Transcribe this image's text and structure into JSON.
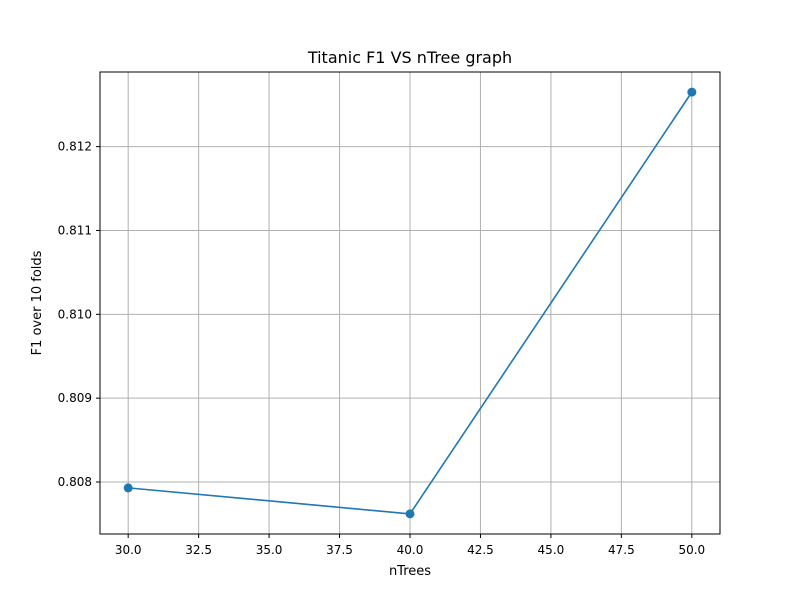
{
  "chart_data": {
    "type": "line",
    "title": "Titanic F1 VS nTree graph",
    "xlabel": "nTrees",
    "ylabel": "F1 over 10 folds",
    "x": [
      30,
      40,
      50
    ],
    "series": [
      {
        "values": [
          0.80793,
          0.80762,
          0.81265
        ],
        "color": "#1f77b4",
        "marker": "circle"
      }
    ],
    "xlim": [
      29.0,
      51.0
    ],
    "ylim": [
      0.80738,
      0.81289
    ],
    "xticks": [
      30.0,
      32.5,
      35.0,
      37.5,
      40.0,
      42.5,
      45.0,
      47.5,
      50.0
    ],
    "xtick_labels": [
      "30.0",
      "32.5",
      "35.0",
      "37.5",
      "40.0",
      "42.5",
      "45.0",
      "47.5",
      "50.0"
    ],
    "yticks": [
      0.808,
      0.809,
      0.81,
      0.811,
      0.812
    ],
    "ytick_labels": [
      "0.808",
      "0.809",
      "0.810",
      "0.811",
      "0.812"
    ],
    "grid": true,
    "grid_color": "#b0b0b0"
  }
}
